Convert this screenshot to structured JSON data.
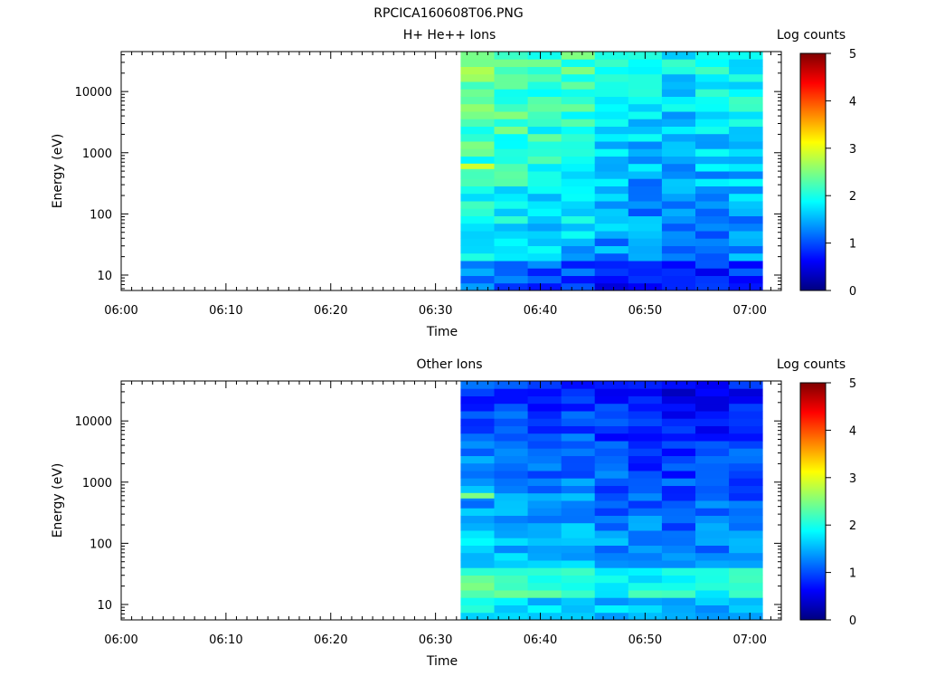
{
  "figure_title": "RPCICA160608T06.PNG",
  "chart_data": [
    {
      "type": "heatmap",
      "title": "H+ He++ Ions",
      "xlabel": "Time",
      "ylabel": "Energy (eV)",
      "x_ticks": [
        "06:00",
        "06:10",
        "06:20",
        "06:30",
        "06:40",
        "06:50",
        "07:00"
      ],
      "x_range_minutes": [
        0,
        63
      ],
      "y_scale": "log",
      "y_range": [
        5.6,
        45000
      ],
      "y_ticks": [
        10,
        100,
        1000,
        10000
      ],
      "y_tick_labels": [
        "10",
        "100",
        "1000",
        "10000"
      ],
      "colorbar": {
        "label": "Log counts",
        "range": [
          0,
          5
        ],
        "ticks": [
          "0",
          "1",
          "2",
          "3",
          "4",
          "5"
        ],
        "colormap": "jet"
      },
      "data_start_minute": 32.4,
      "columns_start_minutes": [
        32.4,
        35.6,
        38.8,
        42.0,
        45.2,
        48.4,
        51.6,
        54.8,
        58.0
      ],
      "column_width_minutes": 3.2,
      "energy_bins": 32,
      "column_mean_log_counts": [
        2.1,
        2.0,
        1.9,
        1.85,
        1.6,
        1.5,
        1.45,
        1.55,
        1.6
      ],
      "feature": {
        "minute_range": [
          32.4,
          35.6
        ],
        "energy_eV": 600,
        "log_counts": 2.9
      }
    },
    {
      "type": "heatmap",
      "title": "Other Ions",
      "xlabel": "Time",
      "ylabel": "Energy (eV)",
      "x_ticks": [
        "06:00",
        "06:10",
        "06:20",
        "06:30",
        "06:40",
        "06:50",
        "07:00"
      ],
      "x_range_minutes": [
        0,
        63
      ],
      "y_scale": "log",
      "y_range": [
        5.6,
        45000
      ],
      "y_ticks": [
        10,
        100,
        1000,
        10000
      ],
      "y_tick_labels": [
        "10",
        "100",
        "1000",
        "10000"
      ],
      "colorbar": {
        "label": "Log counts",
        "range": [
          0,
          5
        ],
        "ticks": [
          "0",
          "1",
          "2",
          "3",
          "4",
          "5"
        ],
        "colormap": "jet"
      },
      "data_start_minute": 32.4,
      "columns_start_minutes": [
        32.4,
        35.6,
        38.8,
        42.0,
        45.2,
        48.4,
        51.6,
        54.8,
        58.0
      ],
      "column_width_minutes": 3.2,
      "energy_bins": 32,
      "column_mean_log_counts": [
        1.4,
        1.35,
        1.3,
        1.3,
        1.15,
        1.1,
        1.05,
        1.1,
        1.15
      ],
      "feature": {
        "minute_range": [
          32.4,
          35.6
        ],
        "energy_eV": 600,
        "log_counts": 2.5
      }
    }
  ]
}
